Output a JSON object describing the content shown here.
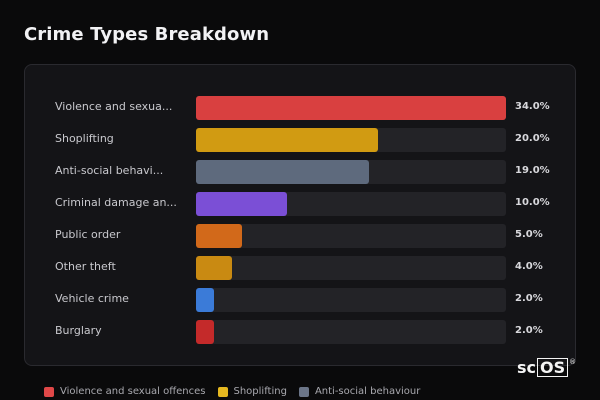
{
  "chart_data": {
    "type": "bar",
    "orientation": "horizontal",
    "title": "Crime Types Breakdown",
    "unit": "%",
    "xlim": [
      0,
      34
    ],
    "grid": false,
    "legend_position": "bottom-left",
    "categories": [
      "Violence and sexua...",
      "Shoplifting",
      "Anti-social behavi...",
      "Criminal damage an...",
      "Public order",
      "Other theft",
      "Vehicle crime",
      "Burglary"
    ],
    "values": [
      34.0,
      20.0,
      19.0,
      10.0,
      5.0,
      4.0,
      2.0,
      2.0
    ],
    "value_labels": [
      "34.0%",
      "20.0%",
      "19.0%",
      "10.0%",
      "5.0%",
      "4.0%",
      "2.0%",
      "2.0%"
    ],
    "colors": [
      "#d94040",
      "#d19b12",
      "#5e6a7d",
      "#7b4fd6",
      "#d2691a",
      "#c98a12",
      "#3b7bd8",
      "#c42a2a"
    ],
    "legend": [
      {
        "label": "Violence and sexual offences",
        "color": "#e04848"
      },
      {
        "label": "Shoplifting",
        "color": "#e6b820"
      },
      {
        "label": "Anti-social behaviour",
        "color": "#6b7588"
      }
    ]
  },
  "watermark": {
    "text_left": "sc",
    "text_box": "OS",
    "mark": "®"
  }
}
